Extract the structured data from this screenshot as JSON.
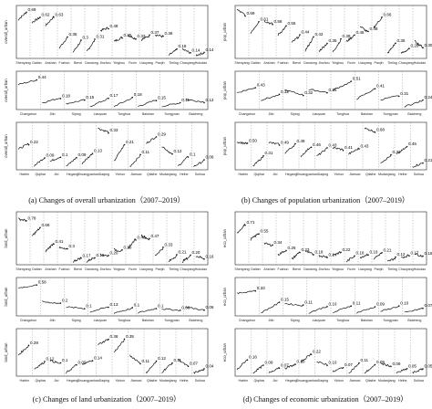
{
  "panels": [
    {
      "caption": "(a) Changes of overall urbanization（2007–2019）",
      "ylabel": "overall_urban",
      "rows": [
        {
          "cities": [
            "Shenyang",
            "Dalian",
            "Anshan",
            "Fushun",
            "Benxi",
            "Dandong",
            "Jinzhou",
            "Yingkou",
            "Fuxin",
            "Liaoyang",
            "Panjin",
            "Tieling",
            "Chaoyang",
            "Huludao"
          ],
          "labels": [
            "0.69",
            "0.62",
            "0.63",
            "0.35",
            "0.3",
            "0.31",
            "0.48",
            "0.35",
            "0.33",
            "0.37",
            "0.36",
            "0.18",
            "0.14",
            "0.14"
          ],
          "values": [
            0.69,
            0.62,
            0.63,
            0.35,
            0.3,
            0.31,
            0.48,
            0.35,
            0.33,
            0.37,
            0.36,
            0.18,
            0.14,
            0.14
          ],
          "ylim": [
            0.1,
            0.72
          ]
        },
        {
          "cities": [
            "Changchun",
            "Jilin",
            "Siping",
            "Liaoyuan",
            "Tonghua",
            "Baishan",
            "Songyuan",
            "Baicheng"
          ],
          "labels": [
            "0.44",
            "0.18",
            "0.15",
            "0.17",
            "0.18",
            "0.15",
            "0.11",
            "0.12"
          ],
          "values": [
            0.44,
            0.18,
            0.15,
            0.17,
            0.18,
            0.15,
            0.11,
            0.12
          ],
          "ylim": [
            0.05,
            0.5
          ]
        },
        {
          "cities": [
            "Harbin",
            "Qiqihar",
            "Jixi",
            "Hegang",
            "Shuangyashan",
            "Daqing",
            "Yichun",
            "Jiamusi",
            "Qitaihe",
            "Mudanjiang",
            "Heihe",
            "Suihua"
          ],
          "labels": [
            "0.22",
            "0.09",
            "0.1",
            "0.09",
            "0.13",
            "0.33",
            "0.21",
            "0.11",
            "0.29",
            "0.12",
            "0.1",
            "0.06"
          ],
          "values": [
            0.22,
            0.09,
            0.1,
            0.09,
            0.13,
            0.33,
            0.21,
            0.11,
            0.29,
            0.12,
            0.1,
            0.06
          ],
          "ylim": [
            0.0,
            0.38
          ]
        }
      ]
    },
    {
      "caption": "(b) Changes of population urbanization（2007–2019）",
      "ylabel": "pop_urban",
      "rows": [
        {
          "cities": [
            "Shenyang",
            "Dalian",
            "Anshan",
            "Fushun",
            "Benxi",
            "Dandong",
            "Jinzhou",
            "Yingkou",
            "Fuxin",
            "Liaoyang",
            "Panjin",
            "Tieling",
            "Chaoyang",
            "Huludao"
          ],
          "labels": [
            "0.69",
            "0.61",
            "0.58",
            "0.55",
            "0.44",
            "0.42",
            "0.35",
            "0.39",
            "0.45",
            "0.48",
            "0.66",
            "0.35",
            "0.28",
            "0.30"
          ],
          "values": [
            0.69,
            0.61,
            0.58,
            0.55,
            0.44,
            0.42,
            0.35,
            0.39,
            0.45,
            0.48,
            0.66,
            0.35,
            0.28,
            0.3
          ],
          "ylim": [
            0.2,
            0.75
          ]
        },
        {
          "cities": [
            "Changchun",
            "Jilin",
            "Siping",
            "Liaoyuan",
            "Tonghua",
            "Baishan",
            "Songyuan",
            "Baicheng"
          ],
          "labels": [
            "0.43",
            "0.32",
            "0.32",
            "0.36",
            "0.51",
            "0.41",
            "0.31",
            "0.24"
          ],
          "values": [
            0.43,
            0.32,
            0.32,
            0.36,
            0.51,
            0.41,
            0.31,
            0.24
          ],
          "ylim": [
            0.15,
            0.6
          ]
        },
        {
          "cities": [
            "Harbin",
            "Qiqihar",
            "Jixi",
            "Hegang",
            "Shuangyashan",
            "Daqing",
            "Yichun",
            "Jiamusi",
            "Qitaihe",
            "Mudanjiang",
            "Heihe",
            "Suihua"
          ],
          "labels": [
            "0.50",
            "0.31",
            "0.49",
            "0.49",
            "0.46",
            "0.43",
            "0.41",
            "0.43",
            "0.68",
            "0.32",
            "0.45",
            "0.21"
          ],
          "values": [
            0.5,
            0.31,
            0.49,
            0.49,
            0.46,
            0.43,
            0.41,
            0.43,
            0.68,
            0.32,
            0.45,
            0.21
          ],
          "ylim": [
            0.15,
            0.75
          ]
        }
      ]
    },
    {
      "caption": "(c) Changes of land urbanization（2007–2019）",
      "ylabel": "land_urban",
      "rows": [
        {
          "cities": [
            "Shenyang",
            "Dalian",
            "Anshan",
            "Fushun",
            "Benxi",
            "Dandong",
            "Jinzhou",
            "Yingkou",
            "Fuxin",
            "Liaoyang",
            "Panjin",
            "Tieling",
            "Chaoyang",
            "Huludao"
          ],
          "labels": [
            "0.78",
            "0.66",
            "0.41",
            "0.3",
            "0.17",
            "0.18",
            "0.20",
            "0.28",
            "0.48",
            "0.47",
            "0.33",
            "0.21",
            "0.20",
            "0.16"
          ],
          "values": [
            0.78,
            0.66,
            0.41,
            0.3,
            0.17,
            0.18,
            0.2,
            0.28,
            0.48,
            0.47,
            0.33,
            0.21,
            0.2,
            0.16
          ],
          "ylim": [
            0.1,
            0.85
          ]
        },
        {
          "cities": [
            "Changchun",
            "Jilin",
            "Siping",
            "Liaoyuan",
            "Tonghua",
            "Baishan",
            "Songyuan",
            "Baicheng"
          ],
          "labels": [
            "0.58",
            "0.2",
            "0.1",
            "0.13",
            "0.1",
            "0.1",
            "0.06",
            "0.06"
          ],
          "values": [
            0.58,
            0.2,
            0.1,
            0.13,
            0.1,
            0.1,
            0.06,
            0.06
          ],
          "ylim": [
            0.0,
            0.65
          ]
        },
        {
          "cities": [
            "Harbin",
            "Qiqihar",
            "Jixi",
            "Hegang",
            "Shuangyashan",
            "Daqing",
            "Yichun",
            "Jiamusi",
            "Qitaihe",
            "Mudanjiang",
            "Heihe",
            "Suihua"
          ],
          "labels": [
            "0.29",
            "0.12",
            "0.1",
            "0.09",
            "0.14",
            "0.36",
            "0.35",
            "0.11",
            "0.12",
            "0.11",
            "0.07",
            "0.04"
          ],
          "values": [
            0.29,
            0.12,
            0.1,
            0.09,
            0.14,
            0.36,
            0.35,
            0.11,
            0.12,
            0.11,
            0.07,
            0.04
          ],
          "ylim": [
            0.0,
            0.42
          ]
        }
      ]
    },
    {
      "caption": "(d) Changes of economic urbanization（2007–2019）",
      "ylabel": "eco_urban",
      "rows": [
        {
          "cities": [
            "Shenyang",
            "Dalian",
            "Anshan",
            "Fushun",
            "Benxi",
            "Dandong",
            "Jinzhou",
            "Yingkou",
            "Fuxin",
            "Liaoyang",
            "Panjin",
            "Tieling",
            "Chaoyang",
            "Huludao"
          ],
          "labels": [
            "0.71",
            "0.55",
            "0.34",
            "0.26",
            "0.23",
            "0.18",
            "0.14",
            "0.22",
            "0.16",
            "0.19",
            "0.21",
            "0.12",
            "0.17",
            "0.15"
          ],
          "values": [
            0.71,
            0.55,
            0.34,
            0.26,
            0.23,
            0.18,
            0.14,
            0.22,
            0.16,
            0.19,
            0.21,
            0.12,
            0.17,
            0.15
          ],
          "ylim": [
            0.05,
            0.85
          ]
        },
        {
          "cities": [
            "Changchun",
            "Jilin",
            "Siping",
            "Liaoyuan",
            "Tonghua",
            "Baishan",
            "Songyuan",
            "Baicheng"
          ],
          "labels": [
            "0.33",
            "0.15",
            "0.11",
            "0.10",
            "0.11",
            "0.09",
            "0.10",
            "0.07"
          ],
          "values": [
            0.33,
            0.15,
            0.11,
            0.1,
            0.11,
            0.09,
            0.1,
            0.07
          ],
          "ylim": [
            0.0,
            0.45
          ]
        },
        {
          "cities": [
            "Harbin",
            "Qiqihar",
            "Jixi",
            "Hegang",
            "Shuangyashan",
            "Daqing",
            "Yichun",
            "Jiamusi",
            "Qitaihe",
            "Mudanjiang",
            "Heihe",
            "Suihua"
          ],
          "labels": [
            "0.16",
            "0.09",
            "0.07",
            "0.10",
            "0.22",
            "0.10",
            "0.07",
            "0.11",
            "0.09",
            "0.08",
            "0.05",
            "0.05"
          ],
          "values": [
            0.16,
            0.09,
            0.07,
            0.1,
            0.22,
            0.1,
            0.07,
            0.11,
            0.09,
            0.08,
            0.05,
            0.05
          ],
          "ylim": [
            0.0,
            0.45
          ]
        }
      ]
    }
  ],
  "chart_data": {
    "type": "line",
    "xlabel": "",
    "grid": false,
    "panels": [
      {
        "ylabel": "overall_urban",
        "rows": [
          {
            "cities": [
              "Shenyang",
              "Dalian",
              "Anshan",
              "Fushun",
              "Benxi",
              "Dandong",
              "Jinzhou",
              "Yingkou",
              "Fuxin",
              "Liaoyang",
              "Panjin",
              "Tieling",
              "Chaoyang",
              "Huludao"
            ],
            "end_values_2019": [
              0.69,
              0.62,
              0.63,
              0.35,
              0.3,
              0.31,
              0.48,
              0.35,
              0.33,
              0.37,
              0.36,
              0.18,
              0.14,
              0.14
            ]
          },
          {
            "cities": [
              "Changchun",
              "Jilin",
              "Siping",
              "Liaoyuan",
              "Tonghua",
              "Baishan",
              "Songyuan",
              "Baicheng"
            ],
            "end_values_2019": [
              0.44,
              0.18,
              0.15,
              0.17,
              0.18,
              0.15,
              0.11,
              0.12
            ]
          },
          {
            "cities": [
              "Harbin",
              "Qiqihar",
              "Jixi",
              "Hegang",
              "Shuangyashan",
              "Daqing",
              "Yichun",
              "Jiamusi",
              "Qitaihe",
              "Mudanjiang",
              "Heihe",
              "Suihua"
            ],
            "end_values_2019": [
              0.22,
              0.09,
              0.1,
              0.09,
              0.13,
              0.33,
              0.21,
              0.11,
              0.29,
              0.12,
              0.1,
              0.06
            ]
          }
        ]
      },
      {
        "ylabel": "pop_urban",
        "rows": [
          {
            "cities": [
              "Shenyang",
              "Dalian",
              "Anshan",
              "Fushun",
              "Benxi",
              "Dandong",
              "Jinzhou",
              "Yingkou",
              "Fuxin",
              "Liaoyang",
              "Panjin",
              "Tieling",
              "Chaoyang",
              "Huludao"
            ],
            "end_values_2019": [
              0.69,
              0.61,
              0.58,
              0.55,
              0.44,
              0.42,
              0.35,
              0.39,
              0.45,
              0.48,
              0.66,
              0.35,
              0.28,
              0.3
            ]
          },
          {
            "cities": [
              "Changchun",
              "Jilin",
              "Siping",
              "Liaoyuan",
              "Tonghua",
              "Baishan",
              "Songyuan",
              "Baicheng"
            ],
            "end_values_2019": [
              0.43,
              0.32,
              0.32,
              0.36,
              0.51,
              0.41,
              0.31,
              0.24
            ]
          },
          {
            "cities": [
              "Harbin",
              "Qiqihar",
              "Jixi",
              "Hegang",
              "Shuangyashan",
              "Daqing",
              "Yichun",
              "Jiamusi",
              "Qitaihe",
              "Mudanjiang",
              "Heihe",
              "Suihua"
            ],
            "end_values_2019": [
              0.5,
              0.31,
              0.49,
              0.49,
              0.46,
              0.43,
              0.41,
              0.43,
              0.68,
              0.32,
              0.45,
              0.21
            ]
          }
        ]
      },
      {
        "ylabel": "land_urban",
        "rows": [
          {
            "cities": [
              "Shenyang",
              "Dalian",
              "Anshan",
              "Fushun",
              "Benxi",
              "Dandong",
              "Jinzhou",
              "Yingkou",
              "Fuxin",
              "Liaoyang",
              "Panjin",
              "Tieling",
              "Chaoyang",
              "Huludao"
            ],
            "end_values_2019": [
              0.78,
              0.66,
              0.41,
              0.3,
              0.17,
              0.18,
              0.2,
              0.28,
              0.48,
              0.47,
              0.33,
              0.21,
              0.2,
              0.16
            ]
          },
          {
            "cities": [
              "Changchun",
              "Jilin",
              "Siping",
              "Liaoyuan",
              "Tonghua",
              "Baishan",
              "Songyuan",
              "Baicheng"
            ],
            "end_values_2019": [
              0.58,
              0.2,
              0.1,
              0.13,
              0.1,
              0.1,
              0.06,
              0.06
            ]
          },
          {
            "cities": [
              "Harbin",
              "Qiqihar",
              "Jixi",
              "Hegang",
              "Shuangyashan",
              "Daqing",
              "Yichun",
              "Jiamusi",
              "Qitaihe",
              "Mudanjiang",
              "Heihe",
              "Suihua"
            ],
            "end_values_2019": [
              0.29,
              0.12,
              0.1,
              0.09,
              0.14,
              0.36,
              0.35,
              0.11,
              0.12,
              0.11,
              0.07,
              0.04
            ]
          }
        ]
      },
      {
        "ylabel": "eco_urban",
        "rows": [
          {
            "cities": [
              "Shenyang",
              "Dalian",
              "Anshan",
              "Fushun",
              "Benxi",
              "Dandong",
              "Jinzhou",
              "Yingkou",
              "Fuxin",
              "Liaoyang",
              "Panjin",
              "Tieling",
              "Chaoyang",
              "Huludao"
            ],
            "end_values_2019": [
              0.71,
              0.55,
              0.34,
              0.26,
              0.23,
              0.18,
              0.14,
              0.22,
              0.16,
              0.19,
              0.21,
              0.12,
              0.17,
              0.15
            ]
          },
          {
            "cities": [
              "Changchun",
              "Jilin",
              "Siping",
              "Liaoyuan",
              "Tonghua",
              "Baishan",
              "Songyuan",
              "Baicheng"
            ],
            "end_values_2019": [
              0.33,
              0.15,
              0.11,
              0.1,
              0.11,
              0.09,
              0.1,
              0.07
            ]
          },
          {
            "cities": [
              "Harbin",
              "Qiqihar",
              "Jixi",
              "Hegang",
              "Shuangyashan",
              "Daqing",
              "Yichun",
              "Jiamusi",
              "Qitaihe",
              "Mudanjiang",
              "Heihe",
              "Suihua"
            ],
            "end_values_2019": [
              0.16,
              0.09,
              0.07,
              0.1,
              0.22,
              0.1,
              0.07,
              0.11,
              0.09,
              0.08,
              0.05,
              0.05
            ]
          }
        ]
      }
    ]
  }
}
